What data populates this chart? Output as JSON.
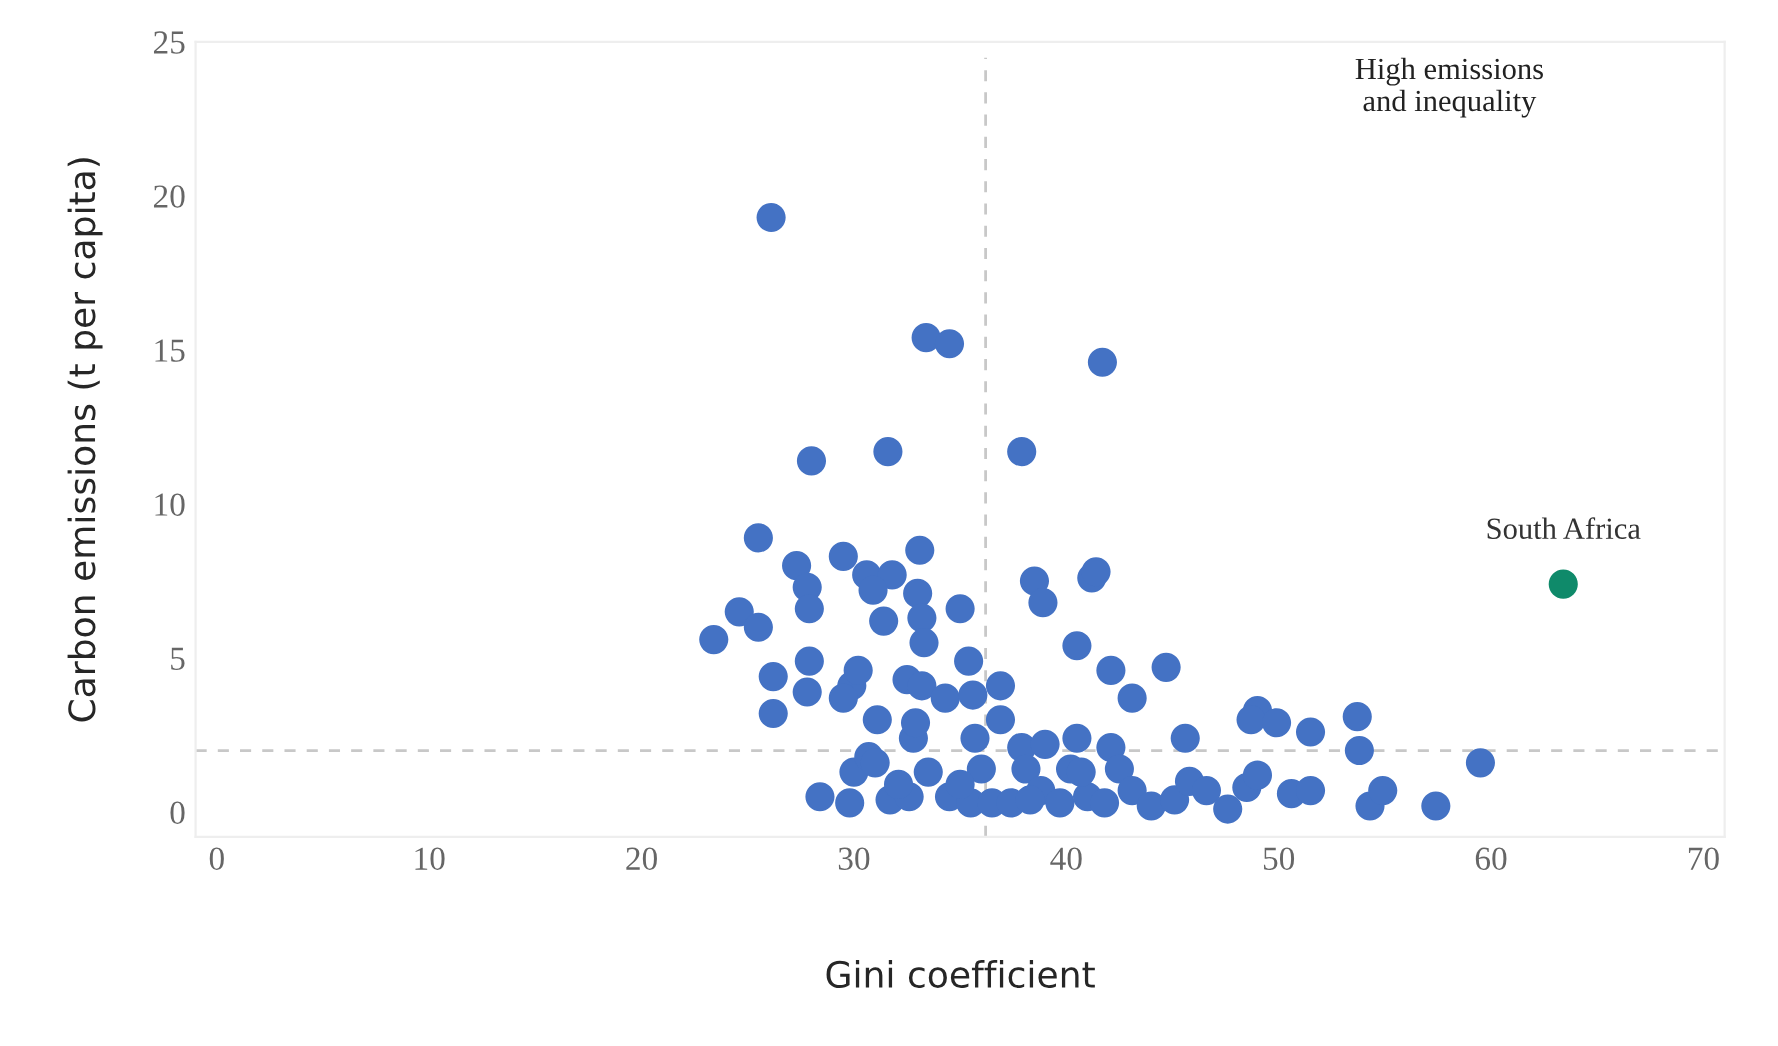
{
  "chart_data": {
    "type": "scatter",
    "xlabel": "Gini coefficient",
    "ylabel": "Carbon emissions (t per capita)",
    "xlim": [
      -1,
      71
    ],
    "ylim": [
      -0.8,
      25
    ],
    "xticks": [
      0,
      10,
      20,
      30,
      40,
      50,
      60,
      70
    ],
    "yticks": [
      0,
      5,
      10,
      15,
      20,
      25
    ],
    "grid": false,
    "marker": "circle",
    "annotations": [
      "High emissions\nand inequality"
    ],
    "ref_lines": [
      {
        "axis": "x",
        "value": 36.2,
        "color": "#c8c8c8",
        "line_style": "dashed"
      },
      {
        "axis": "y",
        "value": 2.0,
        "color": "#c8c8c8",
        "line_style": "dashed"
      }
    ],
    "series": [
      {
        "color": "#4472c4",
        "x": [
          26.1,
          33.4,
          34.5,
          41.7,
          28.0,
          31.6,
          37.9,
          25.5,
          27.3,
          29.5,
          33.1,
          27.8,
          30.6,
          31.8,
          27.9,
          30.9,
          33.0,
          24.6,
          25.5,
          23.4,
          31.4,
          33.2,
          35.0,
          33.3,
          41.2,
          41.4,
          38.5,
          38.9,
          40.5,
          42.1,
          44.7,
          49.0,
          43.1,
          26.2,
          27.9,
          29.9,
          30.2,
          32.5,
          33.2,
          34.3,
          35.4,
          26.2,
          27.8,
          29.5,
          31.1,
          32.8,
          32.9,
          35.6,
          36.9,
          36.9,
          35.7,
          37.9,
          39.0,
          40.5,
          42.1,
          45.6,
          48.7,
          49.9,
          51.5,
          53.7,
          53.8,
          59.5,
          28.4,
          29.8,
          30.0,
          30.7,
          31.7,
          32.6,
          33.5,
          34.5,
          35.5,
          36.0,
          36.5,
          37.4,
          38.1,
          38.8,
          39.7,
          40.2,
          41.0,
          41.8,
          42.5,
          43.1,
          44.0,
          45.1,
          45.8,
          46.6,
          47.6,
          48.5,
          49.0,
          50.6,
          51.5,
          54.3,
          54.9,
          57.4,
          31.0,
          32.1,
          35.0,
          38.3,
          40.7
        ],
        "values": [
          19.3,
          15.4,
          15.2,
          14.6,
          11.4,
          11.7,
          11.7,
          8.9,
          8.0,
          8.3,
          8.5,
          7.3,
          7.7,
          7.7,
          6.6,
          7.2,
          7.1,
          6.5,
          6.0,
          5.6,
          6.2,
          6.3,
          6.6,
          5.5,
          7.6,
          7.8,
          7.5,
          6.8,
          5.4,
          4.6,
          4.7,
          3.3,
          3.7,
          4.4,
          4.9,
          4.1,
          4.6,
          4.3,
          4.1,
          3.7,
          4.9,
          3.2,
          3.9,
          3.7,
          3.0,
          2.4,
          2.9,
          3.8,
          4.1,
          3.0,
          2.4,
          2.1,
          2.2,
          2.4,
          2.1,
          2.4,
          3.0,
          2.9,
          2.6,
          3.1,
          2.0,
          1.6,
          0.5,
          0.3,
          1.3,
          1.8,
          0.4,
          0.5,
          1.3,
          0.5,
          0.3,
          1.4,
          0.3,
          0.3,
          1.4,
          0.7,
          0.3,
          1.4,
          0.5,
          0.3,
          1.4,
          0.7,
          0.2,
          0.4,
          1.0,
          0.7,
          0.1,
          0.8,
          1.2,
          0.6,
          0.7,
          0.2,
          0.7,
          0.2,
          1.6,
          0.9,
          0.9,
          0.4,
          1.3
        ]
      },
      {
        "name": "South Africa",
        "color": "#0f8a6a",
        "x": [
          63.4
        ],
        "values": [
          7.4
        ]
      }
    ]
  }
}
